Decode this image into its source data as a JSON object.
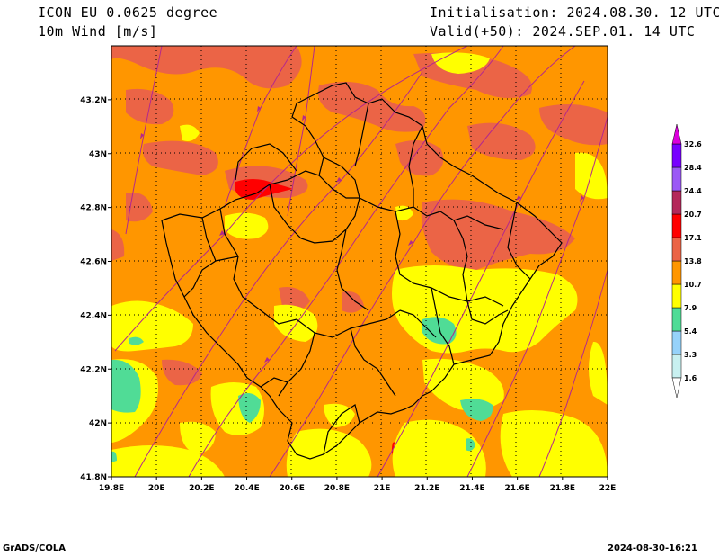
{
  "header": {
    "model_line": "ICON EU 0.0625 degree",
    "variable_line": "10m Wind [m/s]",
    "init_line": "Initialisation: 2024.08.30. 12 UTC",
    "valid_line": "Valid(+50): 2024.SEP.01. 14 UTC"
  },
  "map": {
    "lon_ticks": [
      "19.8E",
      "20E",
      "20.2E",
      "20.4E",
      "20.6E",
      "20.8E",
      "21E",
      "21.2E",
      "21.4E",
      "21.6E",
      "21.8E",
      "22E"
    ],
    "lat_ticks": [
      "41.8N",
      "42N",
      "42.2N",
      "42.4N",
      "42.6N",
      "42.8N",
      "43N",
      "43.2N"
    ],
    "lon_range": [
      19.8,
      22.0
    ],
    "lat_range": [
      41.8,
      43.4
    ]
  },
  "legend": {
    "levels": [
      "1.6",
      "3.3",
      "5.4",
      "7.9",
      "10.7",
      "13.8",
      "17.1",
      "20.7",
      "24.4",
      "28.4",
      "32.6"
    ],
    "colors": [
      "#c8f0f0",
      "#96d2fa",
      "#50dc96",
      "#ffff00",
      "#ff9600",
      "#eb6446",
      "#ff0000",
      "#b4285a",
      "#9b59f5",
      "#7800ff",
      "#dc00dc"
    ],
    "colors_note": "bands between levels, low to high"
  },
  "footer": {
    "software": "GrADS/COLA",
    "timestamp": "2024-08-30-16:21"
  }
}
